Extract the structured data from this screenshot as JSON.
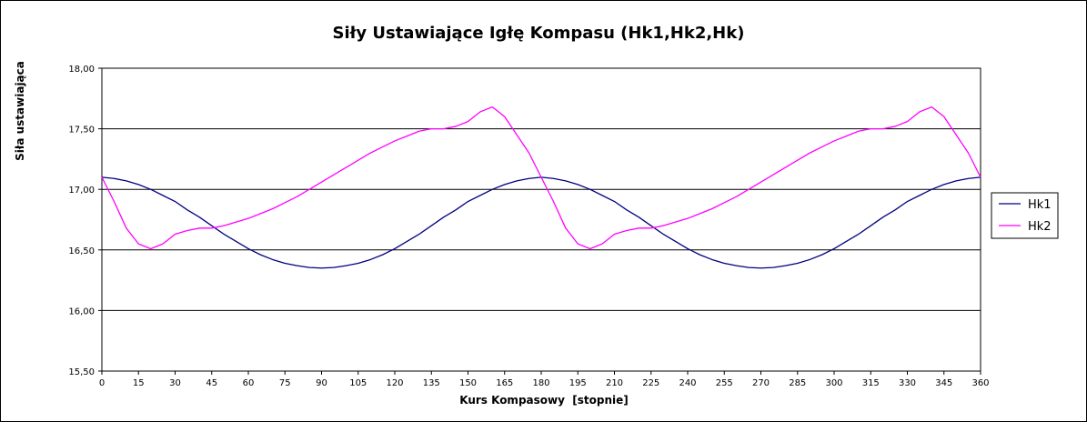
{
  "chart_data": {
    "type": "line",
    "title": "Siły Ustawiające Igłę Kompasu (Hk1,Hk2,Hk)",
    "xlabel": "Kurs Kompasowy  [stopnie]",
    "ylabel": "Siła ustawiająca",
    "xlim": [
      0,
      360
    ],
    "ylim": [
      15.5,
      18.0
    ],
    "x_ticks": [
      0,
      15,
      30,
      45,
      60,
      75,
      90,
      105,
      120,
      135,
      150,
      165,
      180,
      195,
      210,
      225,
      240,
      255,
      270,
      285,
      300,
      315,
      330,
      345,
      360
    ],
    "y_ticks": [
      "15,50",
      "16,00",
      "16,50",
      "17,00",
      "17,50",
      "18,00"
    ],
    "y_tick_values": [
      15.5,
      16.0,
      16.5,
      17.0,
      17.5,
      18.0
    ],
    "grid": "horizontal",
    "legend_position": "right",
    "x": [
      0,
      5,
      10,
      15,
      20,
      25,
      30,
      35,
      40,
      45,
      50,
      55,
      60,
      65,
      70,
      75,
      80,
      85,
      90,
      95,
      100,
      105,
      110,
      115,
      120,
      125,
      130,
      135,
      140,
      145,
      150,
      155,
      160,
      165,
      170,
      175,
      180,
      185,
      190,
      195,
      200,
      205,
      210,
      215,
      220,
      225,
      230,
      235,
      240,
      245,
      250,
      255,
      260,
      265,
      270,
      275,
      280,
      285,
      290,
      295,
      300,
      305,
      310,
      315,
      320,
      325,
      330,
      335,
      340,
      345,
      350,
      355,
      360
    ],
    "series": [
      {
        "name": "Hk1",
        "color": "#000080",
        "values": [
          17.1,
          17.09,
          17.07,
          17.04,
          17.0,
          16.95,
          16.9,
          16.83,
          16.77,
          16.7,
          16.63,
          16.57,
          16.51,
          16.46,
          16.42,
          16.39,
          16.37,
          16.355,
          16.35,
          16.355,
          16.37,
          16.39,
          16.42,
          16.46,
          16.51,
          16.57,
          16.63,
          16.7,
          16.77,
          16.83,
          16.9,
          16.95,
          17.0,
          17.04,
          17.07,
          17.09,
          17.1,
          17.09,
          17.07,
          17.04,
          17.0,
          16.95,
          16.9,
          16.83,
          16.77,
          16.7,
          16.63,
          16.57,
          16.51,
          16.46,
          16.42,
          16.39,
          16.37,
          16.355,
          16.35,
          16.355,
          16.37,
          16.39,
          16.42,
          16.46,
          16.51,
          16.57,
          16.63,
          16.7,
          16.77,
          16.83,
          16.9,
          16.95,
          17.0,
          17.04,
          17.07,
          17.09,
          17.1
        ]
      },
      {
        "name": "Hk2",
        "color": "#ff00ff",
        "values": [
          17.1,
          16.9,
          16.68,
          16.55,
          16.51,
          16.55,
          16.63,
          16.66,
          16.68,
          16.68,
          16.7,
          16.73,
          16.76,
          16.8,
          16.84,
          16.89,
          16.94,
          17.0,
          17.06,
          17.12,
          17.18,
          17.24,
          17.3,
          17.35,
          17.4,
          17.44,
          17.48,
          17.5,
          17.5,
          17.52,
          17.56,
          17.64,
          17.68,
          17.6,
          17.45,
          17.3,
          17.1,
          16.9,
          16.68,
          16.55,
          16.51,
          16.55,
          16.63,
          16.66,
          16.68,
          16.68,
          16.7,
          16.73,
          16.76,
          16.8,
          16.84,
          16.89,
          16.94,
          17.0,
          17.06,
          17.12,
          17.18,
          17.24,
          17.3,
          17.35,
          17.4,
          17.44,
          17.48,
          17.5,
          17.5,
          17.52,
          17.56,
          17.64,
          17.68,
          17.6,
          17.45,
          17.3,
          17.1
        ]
      }
    ]
  }
}
